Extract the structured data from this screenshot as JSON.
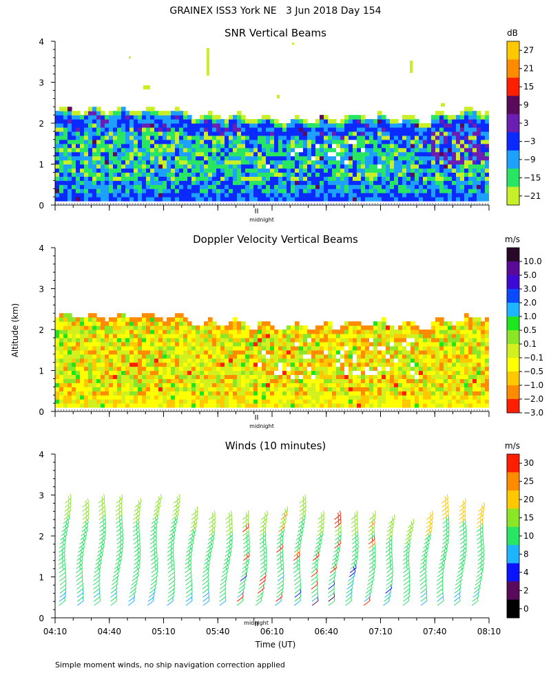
{
  "figure": {
    "title": "GRAINEX ISS3 York NE   3 Jun 2018 Day 154",
    "ylabel": "Altitude (km)",
    "xlabel": "Time (UT)",
    "midnight_label": "midnight",
    "footer": "Simple moment winds, no ship navigation correction applied"
  },
  "chart_data": [
    {
      "type": "heatmap",
      "title": "SNR Vertical Beams",
      "ylim": [
        0,
        4
      ],
      "yticks": [
        0,
        1,
        2,
        3,
        4
      ],
      "colorbar_unit": "dB",
      "colorbar_labels": [
        "27",
        "21",
        "15",
        "9",
        "3",
        "−3",
        "−9",
        "−15",
        "−21"
      ],
      "colorbar_colors": [
        "#ffc800",
        "#ff8c00",
        "#ff1e00",
        "#5a0a5a",
        "#6a1eb4",
        "#0a2aff",
        "#1ea0ff",
        "#28e664",
        "#c8f028"
      ],
      "x_range": [
        "04:10",
        "08:10"
      ],
      "layer_top_km_approx": 2.3
    },
    {
      "type": "heatmap",
      "title": "Doppler Velocity Vertical Beams",
      "ylim": [
        0,
        4
      ],
      "yticks": [
        0,
        1,
        2,
        3,
        4
      ],
      "colorbar_unit": "m/s",
      "colorbar_labels": [
        "10.0",
        "5.0",
        "3.0",
        "2.0",
        "1.0",
        "0.5",
        "0.1",
        "−0.1",
        "−0.5",
        "−1.0",
        "−2.0",
        "−3.0"
      ],
      "colorbar_colors": [
        "#280a28",
        "#5a0a96",
        "#3c0ad2",
        "#0a4aff",
        "#1eb4ff",
        "#1ee61e",
        "#8ce628",
        "#d2f01e",
        "#ffff00",
        "#ffc800",
        "#ff8c00",
        "#ff1e00"
      ],
      "x_range": [
        "04:10",
        "08:10"
      ],
      "layer_top_km_approx": 2.3
    },
    {
      "type": "wind_barbs",
      "title": "Winds (10 minutes)",
      "ylim": [
        0,
        4
      ],
      "yticks": [
        0,
        1,
        2,
        3,
        4
      ],
      "colorbar_unit": "m/s",
      "colorbar_labels": [
        "30",
        "25",
        "20",
        "15",
        "10",
        "8",
        "4",
        "2",
        "0"
      ],
      "colorbar_colors": [
        "#ff1e00",
        "#ff8c00",
        "#ffc800",
        "#8ce628",
        "#28e664",
        "#1eb4ff",
        "#0a14ff",
        "#5a0a5a",
        "#000000"
      ],
      "xticks": [
        "04:10",
        "04:40",
        "05:10",
        "05:40",
        "06:10",
        "06:40",
        "07:10",
        "07:40",
        "08:10"
      ],
      "profile_times": [
        "04:14",
        "04:24",
        "04:34",
        "04:44",
        "04:54",
        "05:04",
        "05:14",
        "05:24",
        "05:34",
        "05:44",
        "05:54",
        "06:04",
        "06:14",
        "06:24",
        "06:34",
        "06:44",
        "06:54",
        "07:04",
        "07:14",
        "07:24",
        "07:34",
        "07:44",
        "07:54",
        "08:04"
      ],
      "profile_top_km": [
        2.9,
        2.75,
        2.85,
        2.85,
        2.8,
        2.85,
        2.9,
        2.6,
        2.5,
        2.45,
        2.45,
        2.45,
        2.55,
        2.85,
        2.45,
        2.45,
        2.45,
        2.45,
        2.35,
        2.3,
        2.45,
        2.85,
        2.8,
        2.65
      ]
    }
  ]
}
